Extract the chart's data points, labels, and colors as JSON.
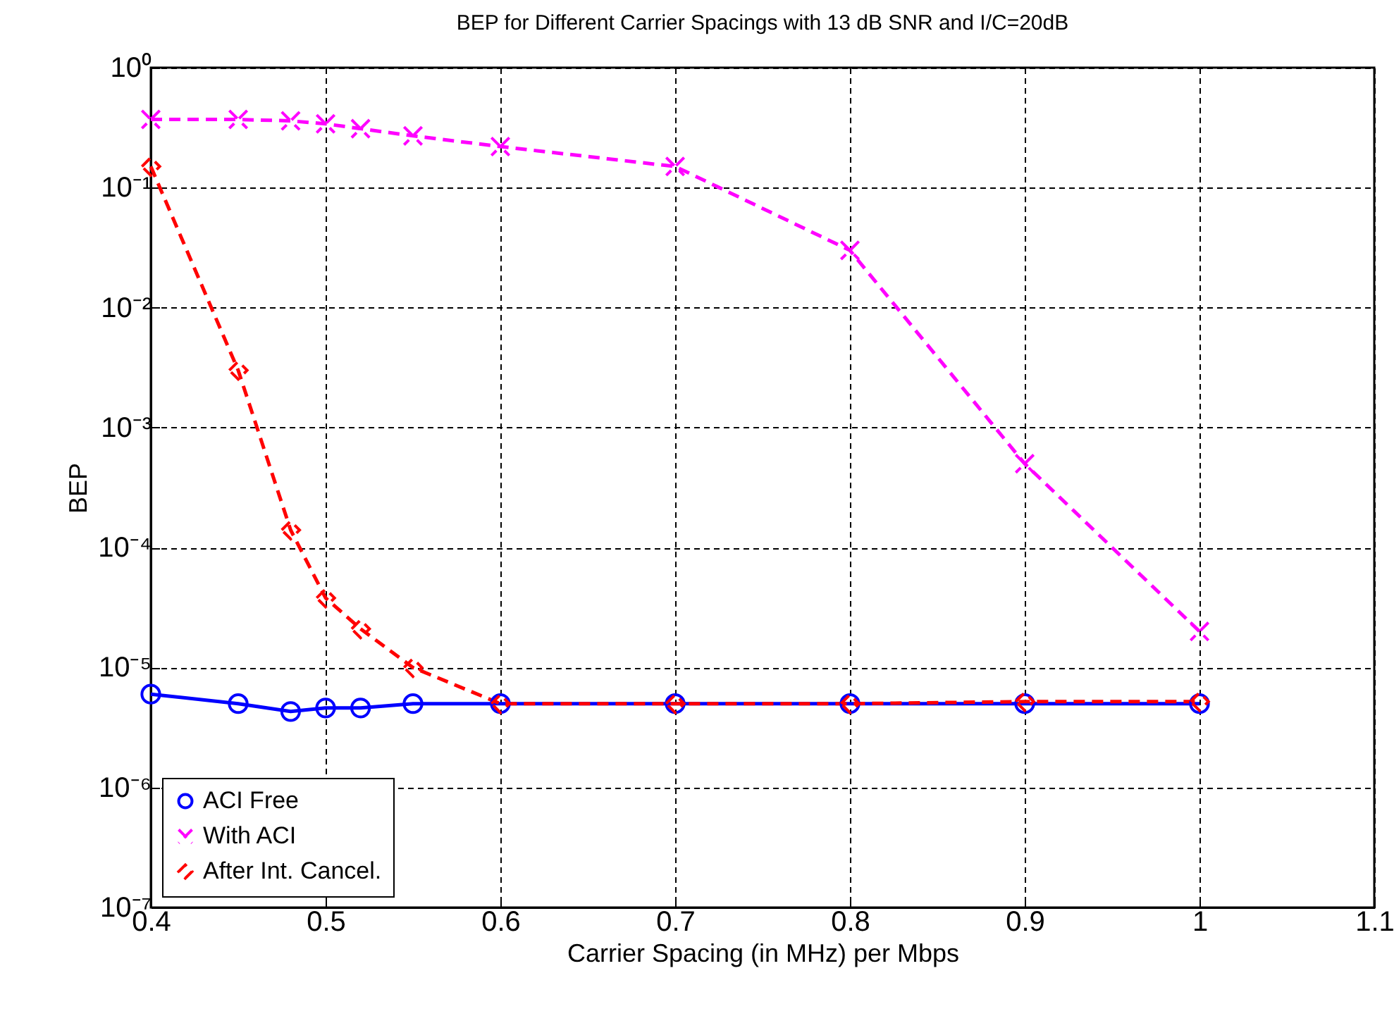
{
  "chart_data": {
    "type": "line",
    "title": "BEP for Different Carrier Spacings with 13 dB SNR and I/C=20dB",
    "xlabel": "Carrier Spacing (in MHz) per Mbps",
    "ylabel": "BEP",
    "x": [
      0.4,
      0.45,
      0.48,
      0.5,
      0.52,
      0.55,
      0.6,
      0.7,
      0.8,
      0.9,
      1.0
    ],
    "series": [
      {
        "name": "ACI Free",
        "color": "#0000ff",
        "marker": "circle",
        "line_style": "solid",
        "values": [
          6e-06,
          5e-06,
          4.3e-06,
          4.6e-06,
          4.6e-06,
          5e-06,
          5e-06,
          5e-06,
          5e-06,
          5e-06,
          5e-06
        ]
      },
      {
        "name": "With ACI",
        "color": "#ff00ff",
        "marker": "cross",
        "line_style": "dashed",
        "values": [
          0.37,
          0.37,
          0.36,
          0.34,
          0.31,
          0.27,
          0.22,
          0.15,
          0.03,
          0.0005,
          2e-05
        ]
      },
      {
        "name": "After Int. Cancel.",
        "color": "#ff0000",
        "marker": "diamond",
        "line_style": "dashed",
        "values": [
          0.15,
          0.003,
          0.00014,
          3.8e-05,
          2.1e-05,
          1e-05,
          5e-06,
          5e-06,
          5e-06,
          5.2e-06,
          5.2e-06
        ]
      }
    ],
    "xlim": [
      0.4,
      1.1
    ],
    "xticks": [
      0.4,
      0.5,
      0.6,
      0.7,
      0.8,
      0.9,
      1,
      1.1
    ],
    "ylim": [
      1e-07,
      1
    ],
    "log": "y",
    "yticks": [
      {
        "value": 1e-07,
        "label": "10⁻⁷"
      },
      {
        "value": 1e-06,
        "label": "10⁻⁶"
      },
      {
        "value": 1e-05,
        "label": "10⁻⁵"
      },
      {
        "value": 0.0001,
        "label": "10⁻⁴"
      },
      {
        "value": 0.001,
        "label": "10⁻³"
      },
      {
        "value": 0.01,
        "label": "10⁻²"
      },
      {
        "value": 0.1,
        "label": "10⁻¹"
      },
      {
        "value": 1,
        "label": "10⁰"
      }
    ],
    "grid": true,
    "legend": "bottom left"
  }
}
